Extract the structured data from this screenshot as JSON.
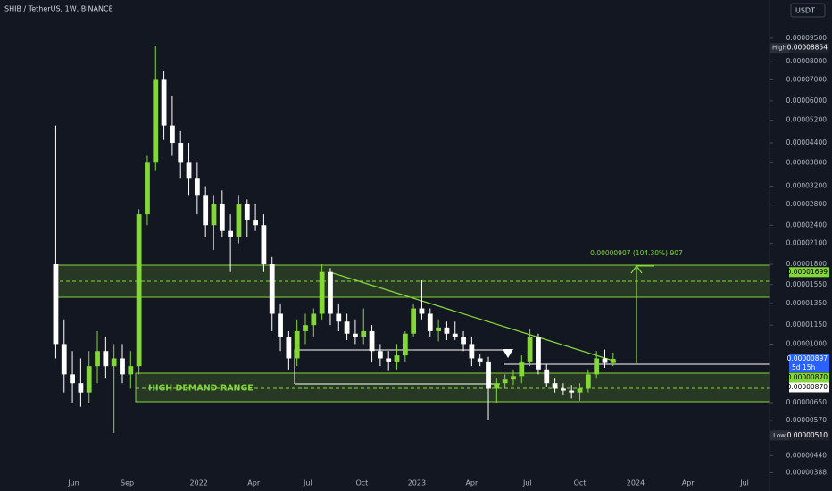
{
  "chart_data": {
    "type": "candlestick",
    "title": "SHIB / TetherUS, 1W, BINANCE",
    "currency": "USDT",
    "annotation": "0.00000907 (104.30%) 907",
    "zone_label": "HIGH DEMAND RANGE",
    "log_scale": true,
    "grid": false,
    "up_color": "#84d63a",
    "down_color": "#ffffff",
    "xlim": [
      -6.7,
      85.8
    ],
    "ylim": [
      3.39e-06,
      0.000126
    ],
    "xticks": [
      {
        "value": 2.15,
        "label": "Jun"
      },
      {
        "value": 8.6,
        "label": "Sep"
      },
      {
        "value": 17.2,
        "label": "2022"
      },
      {
        "value": 23.8,
        "label": "Apr"
      },
      {
        "value": 30.3,
        "label": "Jul"
      },
      {
        "value": 36.8,
        "label": "Oct"
      },
      {
        "value": 43.4,
        "label": "2023"
      },
      {
        "value": 50,
        "label": "Apr"
      },
      {
        "value": 56.7,
        "label": "Jul"
      },
      {
        "value": 63,
        "label": "Oct"
      },
      {
        "value": 69.7,
        "label": "2024"
      },
      {
        "value": 76,
        "label": "Apr"
      },
      {
        "value": 82.8,
        "label": "Jul"
      }
    ],
    "yticks": [
      {
        "value": 9.5e-05,
        "label": "0.00009500"
      },
      {
        "value": 8e-05,
        "label": "0.00008000"
      },
      {
        "value": 7e-05,
        "label": "0.00007000"
      },
      {
        "value": 6e-05,
        "label": "0.00006000"
      },
      {
        "value": 5.2e-05,
        "label": "0.00005200"
      },
      {
        "value": 4.4e-05,
        "label": "0.00004400"
      },
      {
        "value": 3.8e-05,
        "label": "0.00003800"
      },
      {
        "value": 3.2e-05,
        "label": "0.00003200"
      },
      {
        "value": 2.8e-05,
        "label": "0.00002800"
      },
      {
        "value": 2.4e-05,
        "label": "0.00002400"
      },
      {
        "value": 2.1e-05,
        "label": "0.00002100"
      },
      {
        "value": 1.8e-05,
        "label": "0.00001800"
      },
      {
        "value": 1.55e-05,
        "label": "0.00001550"
      },
      {
        "value": 1.35e-05,
        "label": "0.00001350"
      },
      {
        "value": 1.15e-05,
        "label": "0.00001150"
      },
      {
        "value": 1e-05,
        "label": "0.00001000"
      },
      {
        "value": 6.5e-06,
        "label": "0.00000650"
      },
      {
        "value": 5.7e-06,
        "label": "0.00000570"
      },
      {
        "value": 4.4e-06,
        "label": "0.00000440"
      },
      {
        "value": 3.88e-06,
        "label": "0.00000388"
      }
    ],
    "price_labels": [
      {
        "tag": "High",
        "value": 8.854e-05,
        "label": "0.00008854",
        "color": "#1e222d",
        "text_color": "#ffffff"
      },
      {
        "value": 1.699e-05,
        "label": "0.00001699",
        "color": "#84d63a",
        "text_color": "#000000"
      },
      {
        "value": 8.97e-06,
        "label": "0.00000897",
        "color": "#2962ff",
        "text_color": "#ffffff",
        "countdown": "5d 15h"
      },
      {
        "value": 8.7e-06,
        "label": "0.00000870",
        "color": "#84d63a",
        "text_color": "#000000"
      },
      {
        "value": 8.7e-06,
        "label": "0.00000870",
        "color": "#ffffff",
        "text_color": "#000000"
      },
      {
        "tag": "Low",
        "value": 5.1e-06,
        "label": "0.00000510",
        "color": "#1e222d",
        "text_color": "#ffffff"
      }
    ],
    "open": [
      1.8e-05,
      1e-05,
      8e-06,
      7.5e-06,
      7e-06,
      8.5e-06,
      9.5e-06,
      8.5e-06,
      9e-06,
      8e-06,
      8.5e-06,
      2.6e-05,
      3.8e-05,
      7e-05,
      5e-05,
      4.4e-05,
      3.8e-05,
      3.4e-05,
      3e-05,
      2.4e-05,
      2.8e-05,
      2.3e-05,
      2.2e-05,
      2.8e-05,
      2.5e-05,
      2.4e-05,
      1.8e-05,
      1.25e-05,
      1.05e-05,
      9e-06,
      1.1e-05,
      1.15e-05,
      1.25e-05,
      1.7e-05,
      1.25e-05,
      1.18e-05,
      1.08e-05,
      1.05e-05,
      1.1e-05,
      9.5e-06,
      9e-06,
      8.8e-06,
      9.2e-06,
      1.08e-05,
      1.3e-05,
      1.25e-05,
      1.1e-05,
      1.13e-05,
      1.08e-05,
      1.05e-05,
      1e-05,
      9e-06,
      8.8e-06,
      7.2e-06,
      7.5e-06,
      7.7e-06,
      7.9e-06,
      8.8e-06,
      1.05e-05,
      8.3e-06,
      7.5e-06,
      7.2e-06,
      7.1e-06,
      7e-06,
      7.2e-06,
      8e-06,
      9e-06,
      8.7e-06
    ],
    "high": [
      5e-05,
      1.2e-05,
      9.5e-06,
      9e-06,
      9.5e-06,
      1.1e-05,
      1.05e-05,
      1e-05,
      1e-05,
      9.5e-06,
      2.7e-05,
      4e-05,
      9e-05,
      7.5e-05,
      6.2e-05,
      4.8e-05,
      4.4e-05,
      3.8e-05,
      3.2e-05,
      3e-05,
      3.1e-05,
      2.6e-05,
      3e-05,
      2.9e-05,
      2.8e-05,
      2.6e-05,
      1.9e-05,
      1.35e-05,
      1.1e-05,
      1.2e-05,
      1.25e-05,
      1.3e-05,
      1.8e-05,
      1.75e-05,
      1.35e-05,
      1.25e-05,
      1.2e-05,
      1.3e-05,
      1.15e-05,
      1e-05,
      9.5e-06,
      1e-05,
      1.1e-05,
      1.35e-05,
      1.6e-05,
      1.3e-05,
      1.2e-05,
      1.18e-05,
      1.18e-05,
      1.1e-05,
      1.05e-05,
      9.3e-06,
      9.1e-06,
      7.8e-06,
      8e-06,
      8.3e-06,
      9.2e-06,
      1.12e-05,
      1.08e-05,
      8.6e-06,
      7.8e-06,
      7.5e-06,
      7.4e-06,
      7.5e-06,
      8.3e-06,
      9.5e-06,
      9.6e-06,
      9.4e-06
    ],
    "low": [
      9e-06,
      7e-06,
      6.5e-06,
      6.3e-06,
      6.5e-06,
      7.5e-06,
      7.8e-06,
      5.2e-06,
      7.5e-06,
      7.2e-06,
      8e-06,
      2.4e-05,
      3.6e-05,
      4.5e-05,
      4e-05,
      3.4e-05,
      3e-05,
      2.6e-05,
      2.2e-05,
      2e-05,
      2.2e-05,
      1.7e-05,
      2.1e-05,
      2.2e-05,
      2.3e-05,
      1.7e-05,
      1.1e-05,
      9.5e-06,
      8.3e-06,
      8.5e-06,
      1e-05,
      1.05e-05,
      1.2e-05,
      1.15e-05,
      1.1e-05,
      1.03e-05,
      1e-05,
      1e-05,
      8.8e-06,
      8.5e-06,
      8.2e-06,
      8.3e-06,
      8.8e-06,
      1.05e-05,
      1.2e-05,
      1.05e-05,
      1.02e-05,
      1.03e-05,
      1.03e-05,
      9.5e-06,
      8.5e-06,
      8.5e-06,
      5.7e-06,
      6.5e-06,
      7.2e-06,
      7.4e-06,
      7.5e-06,
      8.5e-06,
      8e-06,
      7.3e-06,
      7e-06,
      6.9e-06,
      6.7e-06,
      6.6e-06,
      7e-06,
      7.8e-06,
      8.4e-06,
      8.5e-06
    ],
    "close": [
      1e-05,
      8e-06,
      7.5e-06,
      7e-06,
      8.5e-06,
      9.5e-06,
      8.5e-06,
      9e-06,
      8e-06,
      8.5e-06,
      2.6e-05,
      3.8e-05,
      7e-05,
      5e-05,
      4.4e-05,
      3.8e-05,
      3.4e-05,
      3e-05,
      2.4e-05,
      2.8e-05,
      2.3e-05,
      2.2e-05,
      2.8e-05,
      2.5e-05,
      2.4e-05,
      1.8e-05,
      1.25e-05,
      1.05e-05,
      9e-06,
      1.1e-05,
      1.15e-05,
      1.25e-05,
      1.7e-05,
      1.25e-05,
      1.18e-05,
      1.08e-05,
      1.05e-05,
      1.1e-05,
      9.5e-06,
      9e-06,
      8.8e-06,
      9.2e-06,
      1.08e-05,
      1.3e-05,
      1.25e-05,
      1.1e-05,
      1.13e-05,
      1.08e-05,
      1.05e-05,
      1e-05,
      9e-06,
      8.8e-06,
      7.2e-06,
      7.5e-06,
      7.7e-06,
      7.9e-06,
      8.8e-06,
      1.05e-05,
      8.3e-06,
      7.5e-06,
      7.2e-06,
      7.1e-06,
      7e-06,
      7.2e-06,
      8e-06,
      9e-06,
      8.7e-06,
      8.97e-06
    ]
  }
}
